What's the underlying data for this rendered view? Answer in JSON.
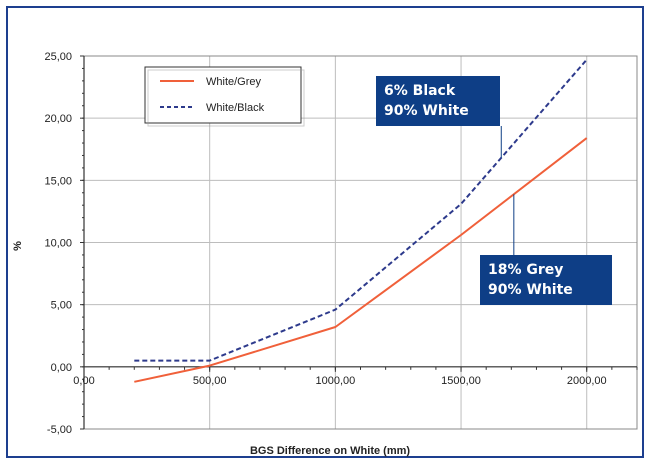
{
  "chart_data": {
    "type": "line",
    "title": "",
    "xlabel": "BGS Difference on White (mm)",
    "ylabel": "%",
    "xlim": [
      0,
      2200
    ],
    "ylim": [
      -5,
      25
    ],
    "x_ticks": [
      "0,00",
      "500,00",
      "1000,00",
      "1500,00",
      "2000,00"
    ],
    "x_tick_values": [
      0,
      500,
      1000,
      1500,
      2000
    ],
    "y_ticks": [
      "25,00",
      "20,00",
      "15,00",
      "10,00",
      "5,00",
      "0,00",
      "-5,00"
    ],
    "y_tick_values": [
      25,
      20,
      15,
      10,
      5,
      0,
      -5
    ],
    "grid": true,
    "legend_position": "top-left",
    "series": [
      {
        "name": "White/Grey",
        "color": "#f0603a",
        "style": "solid",
        "x": [
          200,
          500,
          1000,
          1500,
          2000
        ],
        "y": [
          -1.2,
          0.1,
          3.2,
          10.6,
          18.4
        ]
      },
      {
        "name": "White/Black",
        "color": "#2d3a8c",
        "style": "dashed",
        "x": [
          200,
          500,
          1000,
          1500,
          2000
        ],
        "y": [
          0.5,
          0.5,
          4.6,
          13.1,
          24.7
        ]
      }
    ],
    "annotations": [
      {
        "lines": [
          "6% Black",
          "90% White"
        ],
        "series": "White/Black"
      },
      {
        "lines": [
          "18% Grey",
          "90% White"
        ],
        "series": "White/Grey"
      }
    ]
  }
}
